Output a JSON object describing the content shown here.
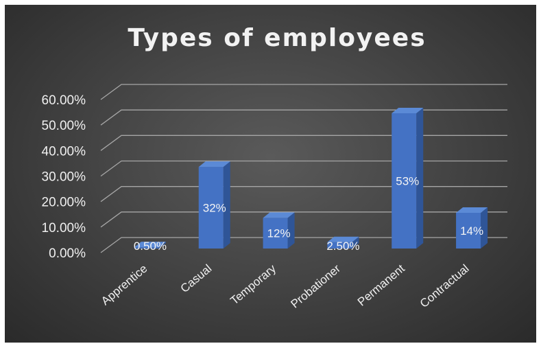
{
  "chart_data": {
    "type": "bar",
    "title": "Types of employees",
    "categories": [
      "Apprentice",
      "Casual",
      "Temporary",
      "Probationer",
      "Permanent",
      "Contractual"
    ],
    "values": [
      0.5,
      32,
      12,
      2.5,
      53,
      14
    ],
    "data_labels": [
      "0.50%",
      "32%",
      "12%",
      "2.50%",
      "53%",
      "14%"
    ],
    "y_ticks": [
      "0.00%",
      "10.00%",
      "20.00%",
      "30.00%",
      "40.00%",
      "50.00%",
      "60.00%"
    ],
    "ylim": [
      0,
      60
    ],
    "grid": true,
    "legend": "none",
    "style": "3d-column",
    "colors": {
      "bar": "#4472c4",
      "bar_side": "#2f5597",
      "bar_top": "#5b8ad6",
      "background": "#404040",
      "grid": "#a6a6a6",
      "text": "#f2f2f2"
    }
  }
}
